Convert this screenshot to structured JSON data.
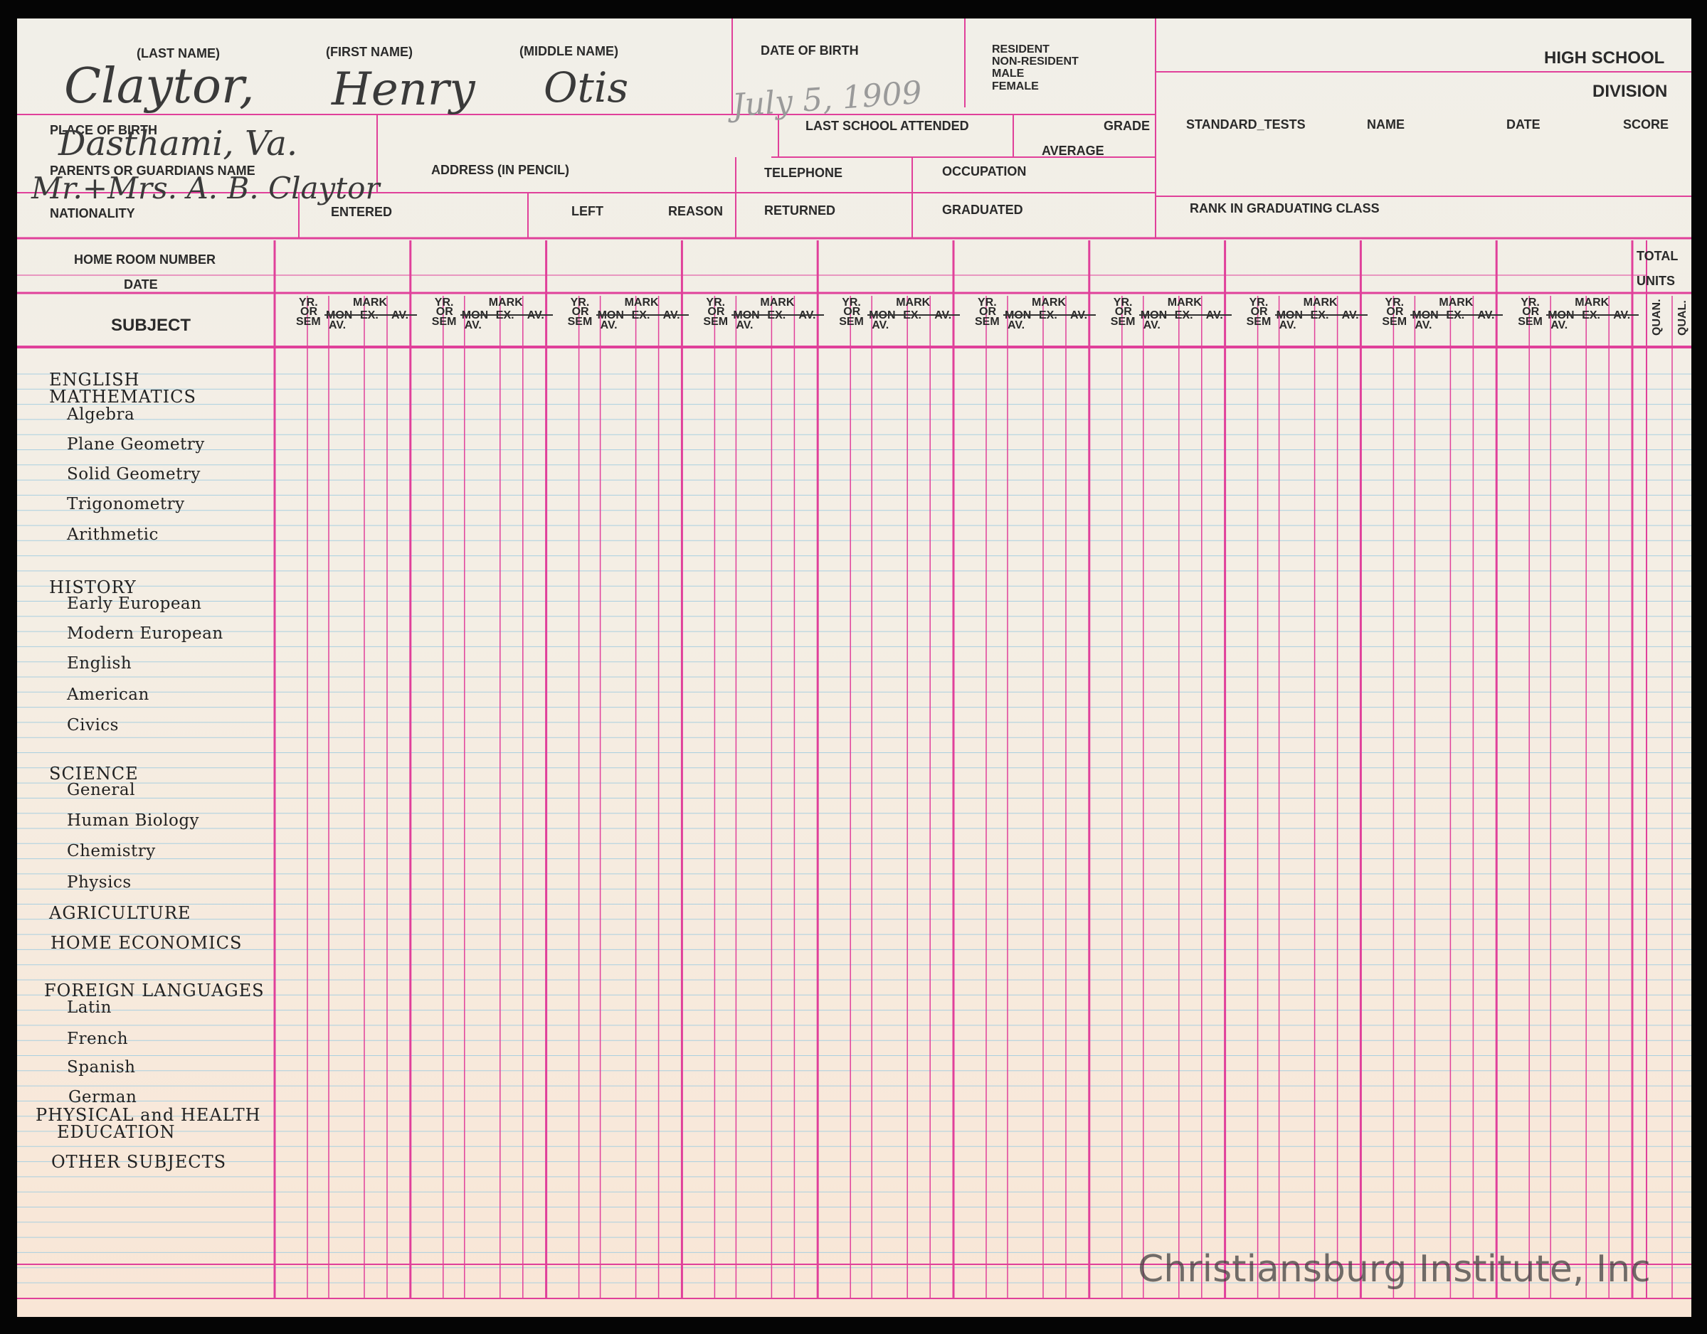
{
  "header": {
    "last_name_label": "(LAST NAME)",
    "first_name_label": "(FIRST NAME)",
    "middle_name_label": "(MIDDLE NAME)",
    "dob_label": "DATE OF BIRTH",
    "resident_label": "RESIDENT",
    "non_resident_label": "NON-RESIDENT",
    "male_label": "MALE",
    "female_label": "FEMALE",
    "high_school_label": "HIGH SCHOOL",
    "division_label": "DIVISION",
    "place_of_birth_label": "PLACE OF BIRTH",
    "last_school_label": "LAST SCHOOL ATTENDED",
    "grade_label": "GRADE",
    "average_label": "AVERAGE",
    "standard_tests_label": "STANDARD_TESTS",
    "name_label": "NAME",
    "date_label": "DATE",
    "score_label": "SCORE",
    "parents_label": "PARENTS OR GUARDIANS NAME",
    "address_label": "ADDRESS (IN PENCIL)",
    "telephone_label": "TELEPHONE",
    "occupation_label": "OCCUPATION",
    "nationality_label": "NATIONALITY",
    "entered_label": "ENTERED",
    "left_label": "LEFT",
    "reason_label": "REASON",
    "returned_label": "RETURNED",
    "graduated_label": "GRADUATED",
    "rank_label": "RANK IN GRADUATING CLASS"
  },
  "handwritten": {
    "last_name": "Claytor,",
    "first_name": "Henry",
    "middle_name": "Otis",
    "date_of_birth": "July 5, 1909",
    "place_of_birth": "Dasthami, Va.",
    "parents": "Mr.+Mrs. A. B. Claytor"
  },
  "grid_header": {
    "home_room_label": "HOME ROOM NUMBER",
    "date_label": "DATE",
    "subject_label": "SUBJECT",
    "total_label": "TOTAL",
    "units_label": "UNITS",
    "quan_label": "QUAN.",
    "qual_label": "QUAL.",
    "yr_label": "YR.",
    "or_label": "OR",
    "sem_label": "SEM",
    "mark_label": "MARK",
    "mon_label": "MON",
    "av_label": "AV.",
    "ex_label": "EX."
  },
  "subjects": {
    "english": "ENGLISH",
    "mathematics": "MATHEMATICS",
    "algebra": "Algebra",
    "plane_geometry": "Plane Geometry",
    "solid_geometry": "Solid Geometry",
    "trigonometry": "Trigonometry",
    "arithmetic": "Arithmetic",
    "history": "HISTORY",
    "early_european": "Early European",
    "modern_european": "Modern European",
    "english_history": "English",
    "american": "American",
    "civics": "Civics",
    "science": "SCIENCE",
    "general": "General",
    "human_biology": "Human Biology",
    "chemistry": "Chemistry",
    "physics": "Physics",
    "agriculture": "AGRICULTURE",
    "home_economics": "HOME ECONOMICS",
    "foreign_languages": "FOREIGN LANGUAGES",
    "latin": "Latin",
    "french": "French",
    "spanish": "Spanish",
    "german": "German",
    "physical_health": "PHYSICAL and HEALTH",
    "education": "EDUCATION",
    "other_subjects": "OTHER SUBJECTS"
  },
  "watermark": "Christiansburg Institute, Inc",
  "colors": {
    "rule_pink": "#e0409a",
    "rule_blue": "#a9cfe0",
    "ink": "#2a2a2a"
  }
}
